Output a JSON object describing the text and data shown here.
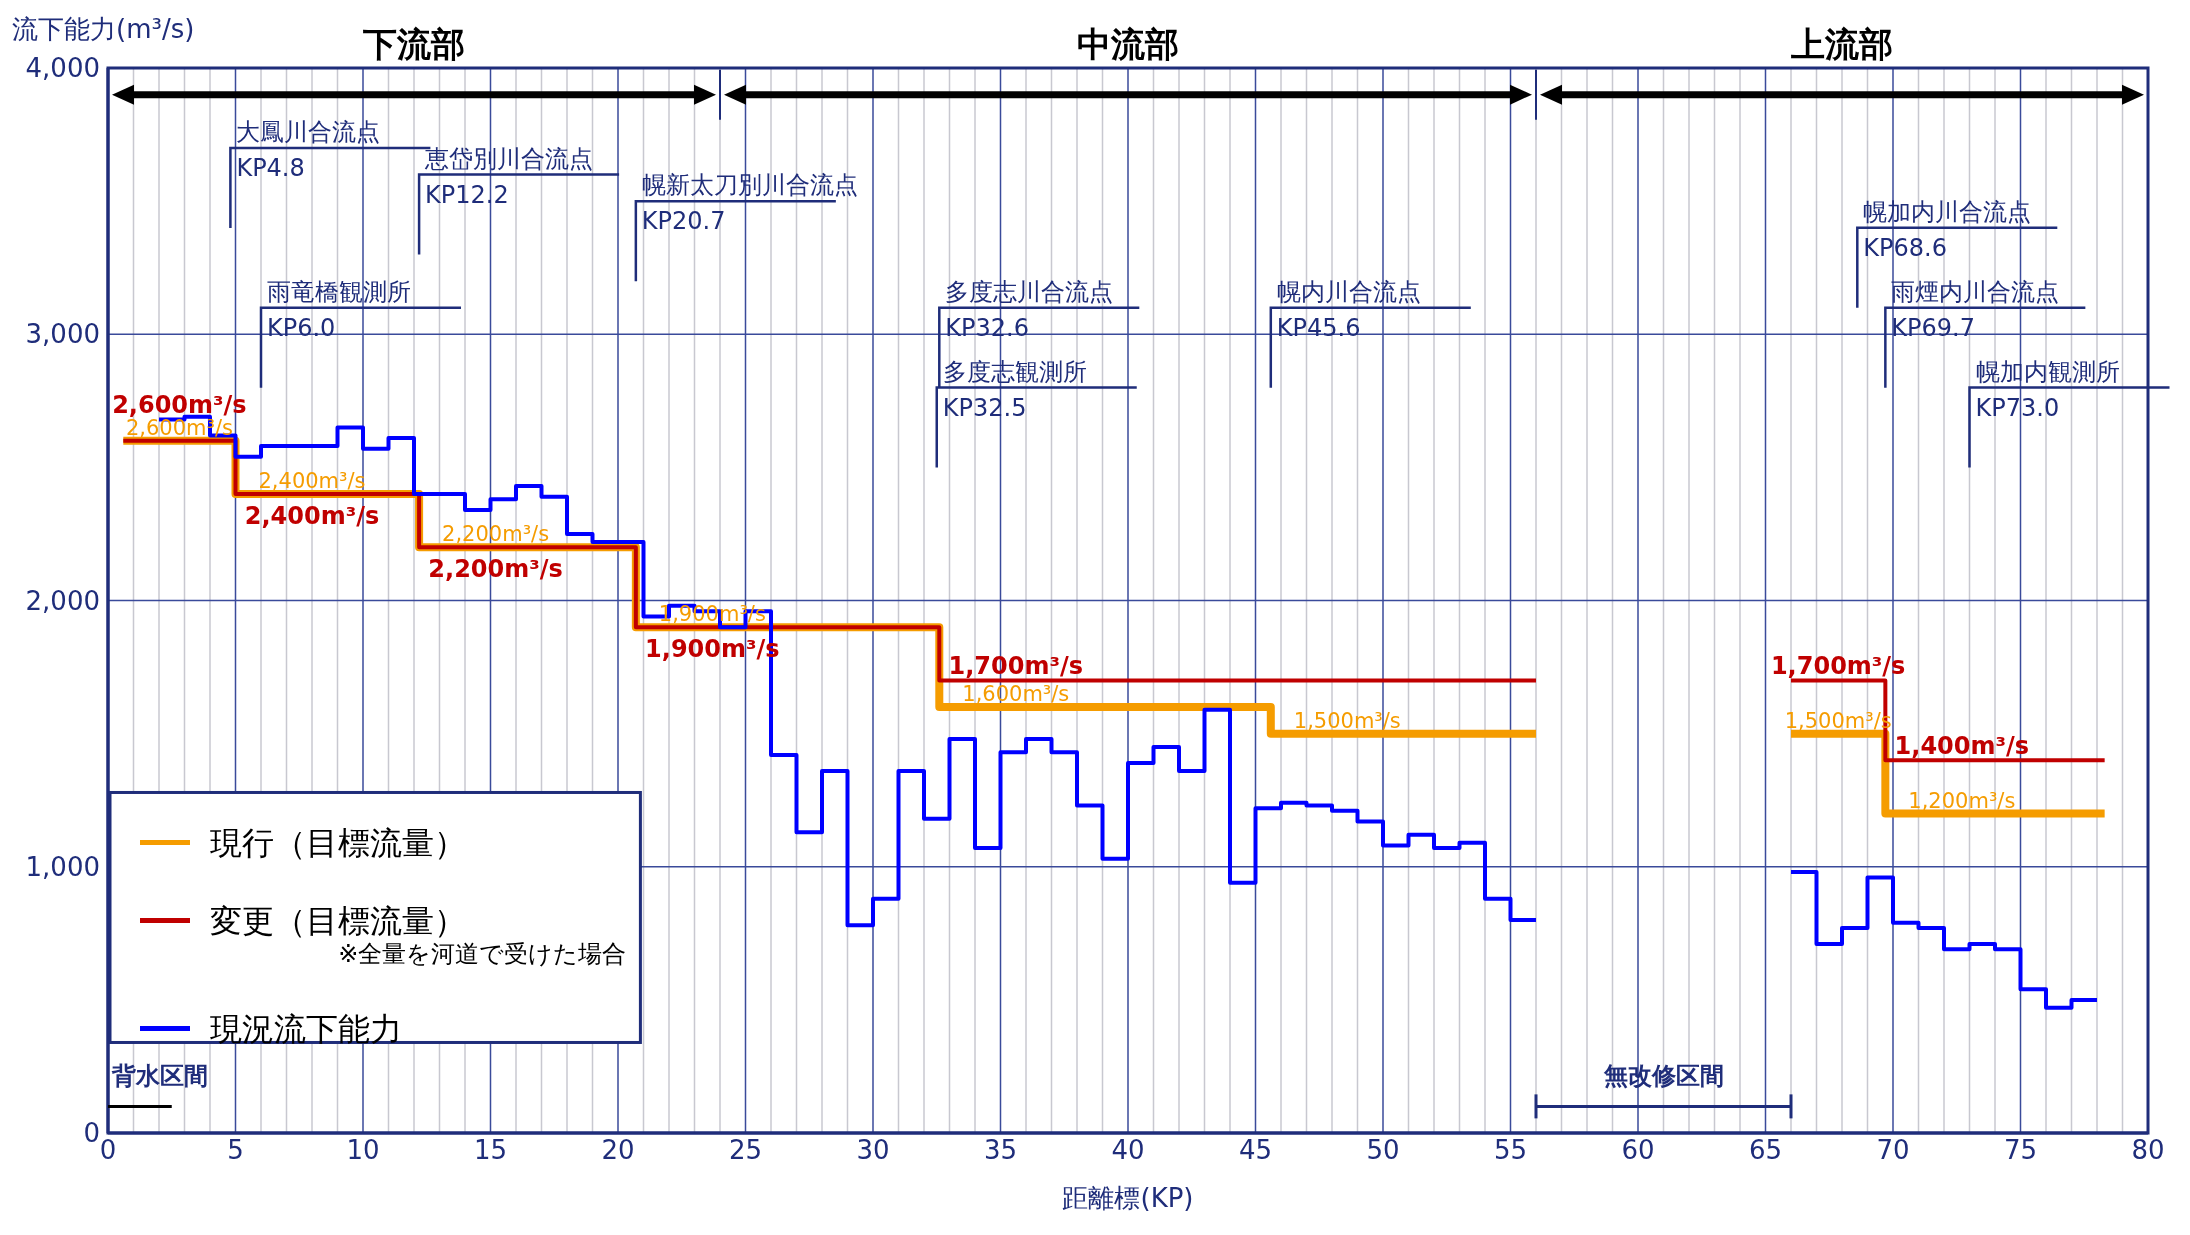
{
  "chart_data": {
    "type": "step",
    "xlabel": "距離標(KP)",
    "ylabel": "流下能力(m³/s)",
    "xlim": [
      0,
      80
    ],
    "xticks": [
      0,
      {
        "value": 1,
        "label": null
      },
      {
        "value": 2,
        "label": null
      },
      {
        "value": 3,
        "label": null
      },
      {
        "value": 4,
        "label": null
      },
      5,
      {
        "value": 6,
        "label": null
      },
      {
        "value": 7,
        "label": null
      },
      {
        "value": 8,
        "label": null
      },
      {
        "value": 9,
        "label": null
      },
      10,
      {
        "value": 11,
        "label": null
      },
      {
        "value": 12,
        "label": null
      },
      {
        "value": 13,
        "label": null
      },
      {
        "value": 14,
        "label": null
      },
      15,
      {
        "value": 16,
        "label": null
      },
      {
        "value": 17,
        "label": null
      },
      {
        "value": 18,
        "label": null
      },
      {
        "value": 19,
        "label": null
      },
      20,
      {
        "value": 21,
        "label": null
      },
      {
        "value": 22,
        "label": null
      },
      {
        "value": 23,
        "label": null
      },
      {
        "value": 24,
        "label": null
      },
      25,
      {
        "value": 26,
        "label": null
      },
      {
        "value": 27,
        "label": null
      },
      {
        "value": 28,
        "label": null
      },
      {
        "value": 29,
        "label": null
      },
      30,
      {
        "value": 31,
        "label": null
      },
      {
        "value": 32,
        "label": null
      },
      {
        "value": 33,
        "label": null
      },
      {
        "value": 34,
        "label": null
      },
      35,
      {
        "value": 36,
        "label": null
      },
      {
        "value": 37,
        "label": null
      },
      {
        "value": 38,
        "label": null
      },
      {
        "value": 39,
        "label": null
      },
      40,
      {
        "value": 41,
        "label": null
      },
      {
        "value": 42,
        "label": null
      },
      {
        "value": 43,
        "label": null
      },
      {
        "value": 44,
        "label": null
      },
      45,
      {
        "value": 46,
        "label": null
      },
      {
        "value": 47,
        "label": null
      },
      {
        "value": 48,
        "label": null
      },
      {
        "value": 49,
        "label": null
      },
      50,
      {
        "value": 51,
        "label": null
      },
      {
        "value": 52,
        "label": null
      },
      {
        "value": 53,
        "label": null
      },
      {
        "value": 54,
        "label": null
      },
      55,
      {
        "value": 56,
        "label": null
      },
      {
        "value": 57,
        "label": null
      },
      {
        "value": 58,
        "label": null
      },
      {
        "value": 59,
        "label": null
      },
      60,
      {
        "value": 61,
        "label": null
      },
      {
        "value": 62,
        "label": null
      },
      {
        "value": 63,
        "label": null
      },
      {
        "value": 64,
        "label": null
      },
      65,
      {
        "value": 66,
        "label": null
      },
      {
        "value": 67,
        "label": null
      },
      {
        "value": 68,
        "label": null
      },
      {
        "value": 69,
        "label": null
      },
      70,
      {
        "value": 71,
        "label": null
      },
      {
        "value": 72,
        "label": null
      },
      {
        "value": 73,
        "label": null
      },
      {
        "value": 74,
        "label": null
      },
      75,
      {
        "value": 76,
        "label": null
      },
      {
        "value": 77,
        "label": null
      },
      {
        "value": 78,
        "label": null
      },
      {
        "value": 79,
        "label": null
      },
      80
    ],
    "ylim": [
      0,
      4000
    ],
    "yticks": [
      0,
      {
        "value": 1000,
        "label": "1,000"
      },
      {
        "value": 2000,
        "label": "2,000"
      },
      {
        "value": 3000,
        "label": "3,000"
      },
      {
        "value": 4000,
        "label": "4,000"
      }
    ],
    "grid": true,
    "legend": "bottom left",
    "marker": "none",
    "series": [
      {
        "name": "現行（目標流量）",
        "color": "#f59c00",
        "x": [
          0.6,
          5,
          12.2,
          20.7,
          32.6,
          45.6,
          56,
          61,
          66,
          69.7,
          78.3
        ],
        "values": [
          2600,
          2400,
          2200,
          1900,
          1600,
          1500,
          1500,
          null,
          1500,
          1200,
          1200
        ],
        "value_labels": [
          "2,600m³/s",
          "2,400m³/s",
          "2,200m³/s",
          "1,900m³/s",
          "1,600m³/s",
          "1,500m³/s",
          null,
          null,
          "1,500m³/s",
          "1,200m³/s",
          null
        ]
      },
      {
        "name": "変更（目標流量）",
        "color": "#c00000",
        "x": [
          0.6,
          5,
          12.2,
          20.7,
          32.6,
          56,
          61,
          66,
          69.7,
          78.3
        ],
        "values": [
          2600,
          2400,
          2200,
          1900,
          1700,
          1700,
          null,
          1700,
          1400,
          1400
        ],
        "value_labels": [
          "2,600m³/s",
          "2,400m³/s",
          "2,200m³/s",
          "1,900m³/s",
          "1,700m³/s",
          null,
          null,
          "1,700m³/s",
          "1,400m³/s",
          null
        ]
      },
      {
        "name": "現況流下能力",
        "color": "#0000ff",
        "x": [
          2,
          3,
          4,
          5,
          6,
          9,
          10,
          11,
          12,
          14,
          15,
          16,
          17,
          18,
          19,
          20,
          21,
          22,
          23,
          24,
          25,
          26,
          27,
          28,
          29,
          30,
          31,
          32,
          33,
          34,
          35,
          36,
          37,
          38,
          39,
          40,
          41,
          42,
          43,
          44,
          45,
          46,
          47,
          48,
          49,
          50,
          51,
          52,
          53,
          54,
          55,
          56,
          61,
          66,
          67,
          68,
          69,
          70,
          71,
          72,
          73,
          74,
          75,
          76,
          77,
          78
        ],
        "values": [
          2680,
          2690,
          2620,
          2540,
          2580,
          2650,
          2570,
          2610,
          2400,
          2340,
          2380,
          2430,
          2390,
          2250,
          2220,
          2220,
          1940,
          1980,
          1960,
          1900,
          1960,
          1420,
          1130,
          1360,
          780,
          880,
          1360,
          1180,
          1480,
          1070,
          1430,
          1480,
          1430,
          1230,
          1030,
          1390,
          1450,
          1360,
          1590,
          940,
          1220,
          1240,
          1230,
          1210,
          1170,
          1080,
          1120,
          1070,
          1090,
          880,
          800,
          800,
          null,
          980,
          710,
          770,
          960,
          790,
          770,
          690,
          710,
          690,
          540,
          470,
          500,
          500
        ]
      }
    ],
    "annotations": [
      "大鳳川合流点\nKP4.8",
      "恵岱別川合流点\nKP12.2",
      "幌新太刀別川合流点\nKP20.7",
      "雨竜橋観測所\nKP6.0",
      "多度志川合流点\nKP32.6",
      "多度志観測所\nKP32.5",
      "幌内川合流点\nKP45.6",
      "幌加内川合流点\nKP68.6",
      "雨煙内川合流点\nKP69.7",
      "幌加内観測所\nKP73.0",
      "※全量を河道で受けた場合",
      "下流部",
      "中流部",
      "上流部",
      "背水区間",
      "無改修区間"
    ]
  }
}
